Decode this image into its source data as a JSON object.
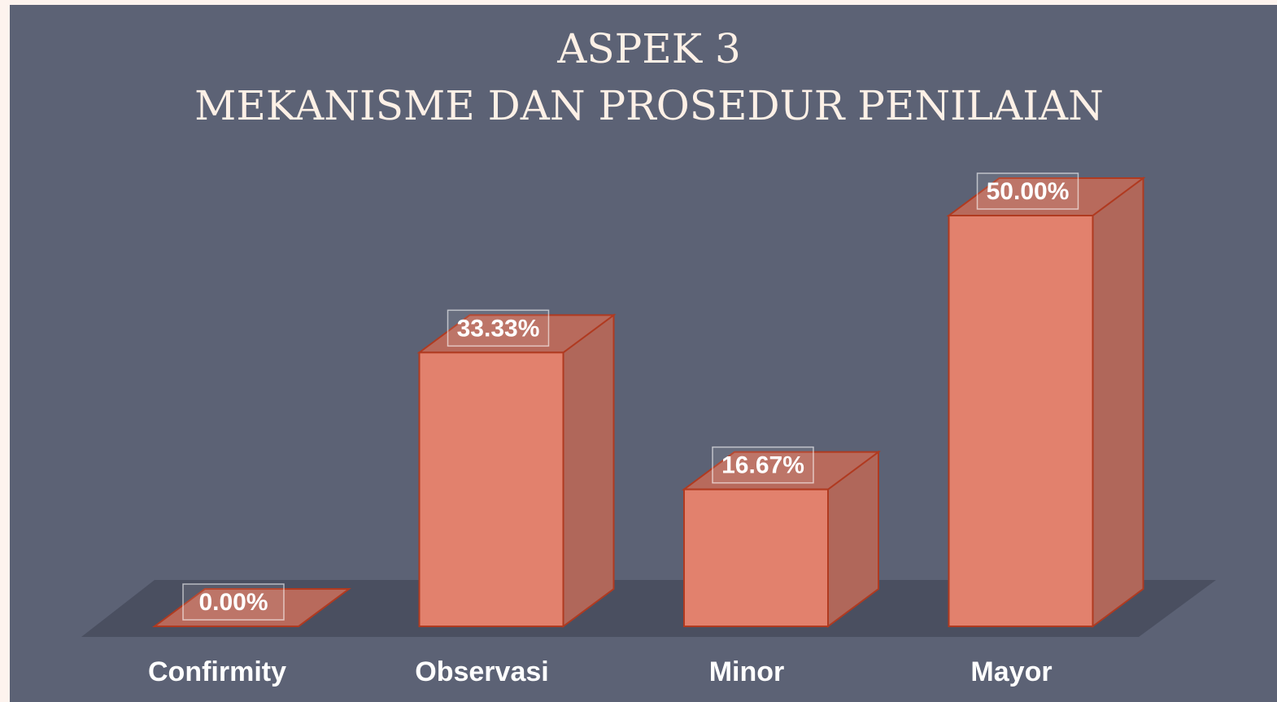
{
  "chart_data": {
    "type": "bar3d",
    "title": "ASPEK 3",
    "subtitle": "MEKANISME DAN PROSEDUR PENILAIAN",
    "categories": [
      "Confirmity",
      "Observasi",
      "Minor",
      "Mayor"
    ],
    "values": [
      0,
      33.33,
      16.67,
      50
    ],
    "value_labels": [
      "0.00%",
      "33.33%",
      "16.67%",
      "50.00%"
    ],
    "color": "#e2816d"
  }
}
